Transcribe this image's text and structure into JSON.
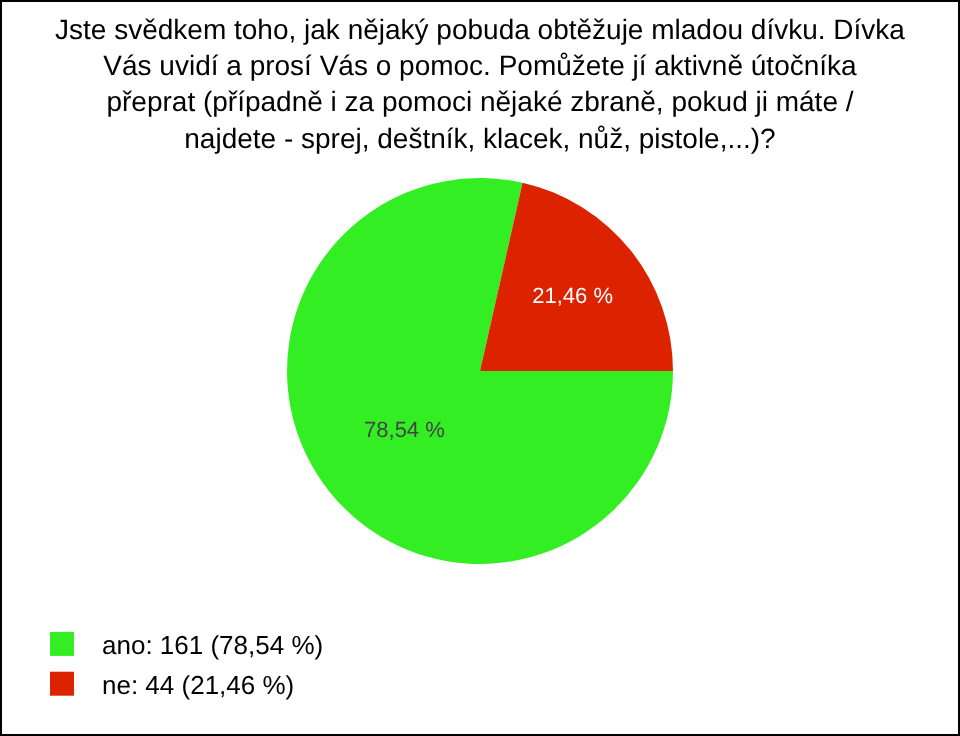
{
  "chart_data": {
    "type": "pie",
    "title": "Jste svědkem toho, jak nějaký pobuda obtěžuje mladou dívku. Dívka Vás uvidí a prosí Vás o pomoc. Pomůžete jí aktivně útočníka přeprat (případně i za pomoci nějaké zbraně, pokud ji máte / najdete - sprej, deštník, klacek, nůž, pistole,...)?",
    "categories": [
      "ano: 161 (78,54 %)",
      "ne: 44 (21,46 %)"
    ],
    "values": [
      78.54,
      21.46
    ],
    "value_labels": [
      "78,54 %",
      "21,46 %"
    ],
    "colors": [
      "#33ee22",
      "#dd2200"
    ],
    "legend": "bottom left"
  }
}
